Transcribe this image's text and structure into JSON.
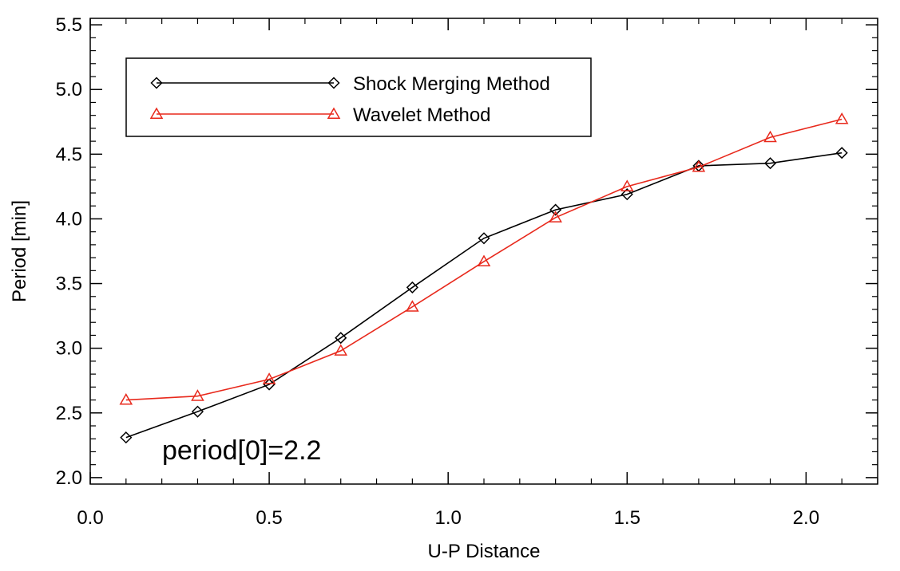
{
  "chart_data": {
    "type": "line",
    "xlabel": "U-P Distance",
    "ylabel": "Period [min]",
    "xlim": [
      0.0,
      2.2
    ],
    "ylim": [
      1.95,
      5.55
    ],
    "x_ticks": [
      0.0,
      0.5,
      1.0,
      1.5,
      2.0
    ],
    "x_tick_labels": [
      "0.0",
      "0.5",
      "1.0",
      "1.5",
      "2.0"
    ],
    "y_ticks": [
      2.0,
      2.5,
      3.0,
      3.5,
      4.0,
      4.5,
      5.0,
      5.5
    ],
    "y_tick_labels": [
      "2.0",
      "2.5",
      "3.0",
      "3.5",
      "4.0",
      "4.5",
      "5.0",
      "5.5"
    ],
    "grid": false,
    "legend_placement": "top-left",
    "annotation": "period[0]=2.2",
    "series": [
      {
        "name": "Shock Merging Method",
        "color": "#000000",
        "marker": "diamond",
        "x": [
          0.1,
          0.3,
          0.5,
          0.7,
          0.9,
          1.1,
          1.3,
          1.5,
          1.7,
          1.9,
          2.1
        ],
        "y": [
          2.31,
          2.51,
          2.72,
          3.08,
          3.47,
          3.85,
          4.07,
          4.19,
          4.41,
          4.43,
          4.51
        ]
      },
      {
        "name": "Wavelet Method",
        "color": "#e8291c",
        "marker": "triangle",
        "x": [
          0.1,
          0.3,
          0.5,
          0.7,
          0.9,
          1.1,
          1.3,
          1.5,
          1.7,
          1.9,
          2.1
        ],
        "y": [
          2.6,
          2.63,
          2.76,
          2.98,
          3.32,
          3.67,
          4.01,
          4.25,
          4.4,
          4.63,
          4.77
        ]
      }
    ]
  }
}
